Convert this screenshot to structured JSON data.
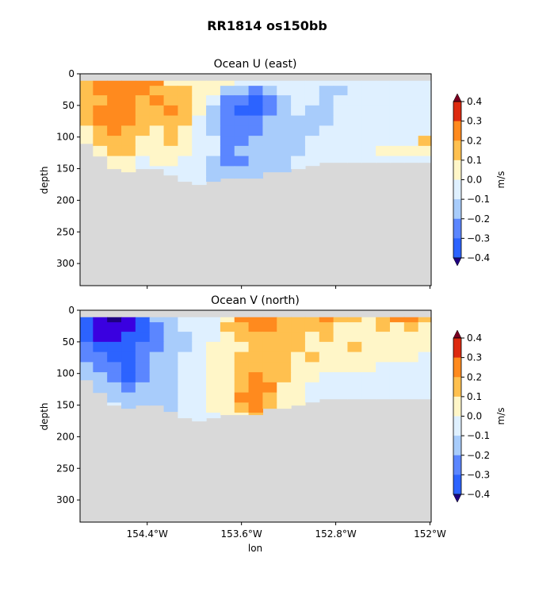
{
  "figure": {
    "suptitle": "RR1814 os150bb"
  },
  "colorbar": {
    "label": "m/s",
    "ticks": [
      "0.4",
      "0.3",
      "0.2",
      "0.1",
      "0.0",
      "−0.1",
      "−0.2",
      "−0.3",
      "−0.4"
    ],
    "colors": [
      "#3a00e0",
      "#2c63ff",
      "#5b86ff",
      "#a8ccfb",
      "#dff0ff",
      "#fff6c8",
      "#ffc04f",
      "#ff8a1e",
      "#dd2a10"
    ],
    "extend_low": "#1e0080",
    "extend_high": "#7a0020"
  },
  "chart_data": [
    {
      "type": "heatmap",
      "title": "Ocean U (east)",
      "xlabel": "",
      "ylabel": "depth",
      "xlim": [
        -154.97,
        -151.99
      ],
      "ylim": [
        335,
        0
      ],
      "xticks": [
        -154.4,
        -153.6,
        -152.8,
        -152.0
      ],
      "xticklabels": [
        "",
        "",
        "",
        ""
      ],
      "yticks": [
        0,
        50,
        100,
        150,
        200,
        250,
        300
      ],
      "yticklabels": [
        "0",
        "50",
        "100",
        "150",
        "200",
        "250",
        "300"
      ],
      "missing_color": "#d9d9d9",
      "levels": [
        -0.4,
        -0.3,
        -0.2,
        -0.1,
        0.0,
        0.1,
        0.2,
        0.3,
        0.4
      ],
      "depths": [
        12,
        26,
        42,
        58,
        74,
        90,
        106,
        122,
        138,
        154,
        170
      ],
      "lons": [
        -154.92,
        -154.8,
        -154.68,
        -154.56,
        -154.44,
        -154.32,
        -154.2,
        -154.08,
        -153.96,
        -153.84,
        -153.72,
        -153.6,
        -153.48,
        -153.36,
        -153.24,
        -153.12,
        -153.0,
        -152.88,
        -152.76,
        -152.64,
        -152.52,
        -152.4,
        -152.28,
        -152.16,
        -152.04
      ],
      "bottom_depth": [
        110,
        130,
        150,
        155,
        150,
        150,
        160,
        170,
        175,
        170,
        165,
        165,
        165,
        155,
        155,
        150,
        145,
        140,
        140,
        140,
        140,
        140,
        140,
        140,
        140
      ],
      "values": [
        [
          0.2,
          0.3,
          0.35,
          0.35,
          0.35,
          0.3,
          0.15,
          0.15,
          0.15,
          0.1,
          0.1,
          0.05,
          0.05,
          0.0,
          0.0,
          0.05,
          0.05,
          0.0,
          0.05,
          0.05,
          0.05,
          0.05,
          0.05,
          0.05,
          0.05
        ],
        [
          0.2,
          0.3,
          0.3,
          0.35,
          0.3,
          0.25,
          0.2,
          0.2,
          0.15,
          0.1,
          -0.05,
          -0.1,
          -0.15,
          -0.05,
          0.0,
          0.05,
          0.05,
          -0.05,
          -0.05,
          0.05,
          0.0,
          0.05,
          0.05,
          0.05,
          0.05
        ],
        [
          0.25,
          0.25,
          0.3,
          0.3,
          0.25,
          0.3,
          0.25,
          0.2,
          0.15,
          0.05,
          -0.15,
          -0.2,
          -0.25,
          -0.15,
          -0.05,
          0.05,
          0.0,
          -0.05,
          0.0,
          0.05,
          0.05,
          0.05,
          0.05,
          0.05,
          0.05
        ],
        [
          0.2,
          0.3,
          0.35,
          0.3,
          0.2,
          0.25,
          0.3,
          0.25,
          0.1,
          -0.05,
          -0.2,
          -0.3,
          -0.25,
          -0.15,
          -0.05,
          0.0,
          -0.05,
          -0.05,
          0.0,
          0.05,
          0.05,
          0.05,
          0.05,
          0.05,
          0.05
        ],
        [
          0.25,
          0.3,
          0.35,
          0.3,
          0.2,
          0.2,
          0.25,
          0.2,
          0.05,
          -0.05,
          -0.15,
          -0.2,
          -0.2,
          -0.1,
          -0.05,
          -0.05,
          -0.05,
          -0.05,
          0.0,
          0.05,
          0.05,
          0.05,
          0.05,
          0.05,
          0.05
        ],
        [
          0.15,
          0.25,
          0.3,
          0.25,
          0.2,
          0.15,
          0.2,
          0.15,
          0.05,
          -0.05,
          -0.15,
          -0.15,
          -0.15,
          -0.1,
          -0.05,
          -0.05,
          -0.05,
          0.0,
          0.05,
          0.05,
          0.05,
          0.05,
          0.05,
          0.05,
          0.05
        ],
        [
          0.1,
          0.2,
          0.25,
          0.2,
          0.15,
          0.15,
          0.2,
          0.15,
          0.05,
          0.0,
          -0.15,
          -0.15,
          -0.1,
          -0.1,
          -0.05,
          -0.05,
          0.0,
          0.05,
          0.05,
          0.05,
          0.05,
          0.05,
          0.05,
          0.05,
          0.2
        ],
        [
          0.15,
          0.15,
          0.2,
          0.2,
          0.1,
          0.15,
          0.15,
          0.1,
          0.05,
          0.0,
          -0.15,
          -0.1,
          -0.1,
          -0.1,
          -0.05,
          -0.05,
          0.05,
          0.05,
          0.05,
          0.05,
          0.05,
          0.15,
          0.15,
          0.15,
          0.15
        ],
        [
          0.1,
          0.15,
          0.15,
          0.15,
          0.05,
          0.1,
          0.1,
          0.05,
          0.05,
          -0.05,
          -0.15,
          -0.15,
          -0.1,
          -0.05,
          -0.05,
          0.0,
          0.05,
          0.05,
          0.05,
          0.05,
          0.05,
          0.05,
          0.05,
          0.05,
          0.05
        ],
        [
          0.1,
          0.15,
          0.15,
          0.1,
          0.05,
          0.05,
          0.05,
          0.0,
          0.05,
          -0.05,
          -0.1,
          -0.1,
          -0.05,
          -0.05,
          -0.05,
          0.0,
          0.05,
          0.05,
          0.05,
          0.05,
          0.05,
          0.05,
          0.05,
          0.05,
          0.05
        ],
        [
          0.1,
          0.1,
          0.1,
          0.05,
          0.05,
          0.05,
          0.05,
          0.0,
          0.0,
          -0.05,
          -0.05,
          -0.05,
          -0.05,
          -0.05,
          0.0,
          0.0,
          0.05,
          0.05,
          0.05,
          0.05,
          0.05,
          0.05,
          0.05,
          0.05,
          0.05
        ]
      ]
    },
    {
      "type": "heatmap",
      "title": "Ocean V (north)",
      "xlabel": "lon",
      "ylabel": "depth",
      "xlim": [
        -154.97,
        -151.99
      ],
      "ylim": [
        335,
        0
      ],
      "xticks": [
        -154.4,
        -153.6,
        -152.8,
        -152.0
      ],
      "xticklabels": [
        "154.4°W",
        "153.6°W",
        "152.8°W",
        "152°W"
      ],
      "yticks": [
        0,
        50,
        100,
        150,
        200,
        250,
        300
      ],
      "yticklabels": [
        "0",
        "50",
        "100",
        "150",
        "200",
        "250",
        "300"
      ],
      "missing_color": "#d9d9d9",
      "levels": [
        -0.4,
        -0.3,
        -0.2,
        -0.1,
        0.0,
        0.1,
        0.2,
        0.3,
        0.4
      ],
      "depths": [
        12,
        26,
        42,
        58,
        74,
        90,
        106,
        122,
        138,
        154,
        170
      ],
      "lons": [
        -154.92,
        -154.8,
        -154.68,
        -154.56,
        -154.44,
        -154.32,
        -154.2,
        -154.08,
        -153.96,
        -153.84,
        -153.72,
        -153.6,
        -153.48,
        -153.36,
        -153.24,
        -153.12,
        -153.0,
        -152.88,
        -152.76,
        -152.64,
        -152.52,
        -152.4,
        -152.28,
        -152.16,
        -152.04
      ],
      "bottom_depth": [
        110,
        130,
        150,
        155,
        150,
        150,
        160,
        170,
        175,
        170,
        165,
        165,
        165,
        155,
        155,
        150,
        145,
        140,
        140,
        140,
        140,
        140,
        140,
        140,
        140
      ],
      "values": [
        [
          -0.25,
          -0.35,
          -0.45,
          -0.35,
          -0.25,
          -0.1,
          -0.05,
          0.0,
          0.0,
          0.05,
          0.15,
          0.3,
          0.35,
          0.35,
          0.25,
          0.25,
          0.2,
          0.3,
          0.2,
          0.2,
          0.15,
          0.2,
          0.3,
          0.35,
          0.25
        ],
        [
          -0.3,
          -0.35,
          -0.4,
          -0.35,
          -0.25,
          -0.15,
          -0.05,
          0.0,
          0.0,
          0.05,
          0.2,
          0.25,
          0.3,
          0.3,
          0.25,
          0.2,
          0.2,
          0.25,
          0.15,
          0.15,
          0.15,
          0.2,
          0.15,
          0.25,
          0.15
        ],
        [
          -0.3,
          -0.35,
          -0.35,
          -0.3,
          -0.25,
          -0.15,
          -0.05,
          -0.05,
          0.05,
          0.05,
          0.15,
          0.2,
          0.25,
          0.25,
          0.2,
          0.2,
          0.15,
          0.2,
          0.15,
          0.15,
          0.15,
          0.15,
          0.15,
          0.15,
          0.15
        ],
        [
          -0.2,
          -0.3,
          -0.3,
          -0.25,
          -0.2,
          -0.15,
          -0.05,
          -0.05,
          0.05,
          0.1,
          0.15,
          0.15,
          0.2,
          0.2,
          0.25,
          0.2,
          0.15,
          0.15,
          0.15,
          0.2,
          0.15,
          0.15,
          0.15,
          0.15,
          0.15
        ],
        [
          -0.15,
          -0.2,
          -0.25,
          -0.25,
          -0.2,
          -0.1,
          -0.05,
          0.0,
          0.05,
          0.1,
          0.15,
          0.2,
          0.2,
          0.25,
          0.2,
          0.15,
          0.2,
          0.15,
          0.15,
          0.15,
          0.15,
          0.1,
          0.15,
          0.15,
          0.05
        ],
        [
          -0.1,
          -0.15,
          -0.2,
          -0.25,
          -0.2,
          -0.1,
          -0.05,
          0.0,
          0.05,
          0.1,
          0.15,
          0.2,
          0.25,
          0.25,
          0.2,
          0.15,
          0.15,
          0.15,
          0.1,
          0.15,
          0.15,
          0.05,
          0.05,
          0.05,
          0.05
        ],
        [
          -0.05,
          -0.1,
          -0.15,
          -0.25,
          -0.15,
          -0.1,
          -0.05,
          0.0,
          0.05,
          0.1,
          0.15,
          0.2,
          0.3,
          0.25,
          0.2,
          0.15,
          0.1,
          0.05,
          0.05,
          0.05,
          0.05,
          0.05,
          0.05,
          0.05,
          0.05
        ],
        [
          0.05,
          -0.05,
          -0.1,
          -0.15,
          -0.1,
          -0.05,
          -0.05,
          0.0,
          0.05,
          0.1,
          0.15,
          0.25,
          0.35,
          0.3,
          0.15,
          0.1,
          0.05,
          0.05,
          0.05,
          0.05,
          0.05,
          0.05,
          0.05,
          0.05,
          0.05
        ],
        [
          0.05,
          0.05,
          -0.05,
          -0.1,
          -0.05,
          -0.05,
          -0.05,
          0.0,
          0.05,
          0.1,
          0.15,
          0.3,
          0.35,
          0.25,
          0.15,
          0.1,
          0.05,
          0.05,
          0.05,
          0.05,
          0.05,
          0.05,
          0.05,
          0.05,
          0.05
        ],
        [
          0.05,
          0.05,
          0.0,
          -0.05,
          -0.05,
          -0.05,
          -0.05,
          0.0,
          0.05,
          0.1,
          0.15,
          0.25,
          0.3,
          0.2,
          0.1,
          0.1,
          0.05,
          0.05,
          0.05,
          0.05,
          0.05,
          0.05,
          0.05,
          0.05,
          0.05
        ],
        [
          0.05,
          0.05,
          0.0,
          0.0,
          -0.05,
          -0.05,
          -0.05,
          0.0,
          0.05,
          0.05,
          0.1,
          0.15,
          0.2,
          0.15,
          0.1,
          0.05,
          0.05,
          0.05,
          0.05,
          0.05,
          0.05,
          0.05,
          0.05,
          0.05,
          0.05
        ]
      ]
    }
  ]
}
